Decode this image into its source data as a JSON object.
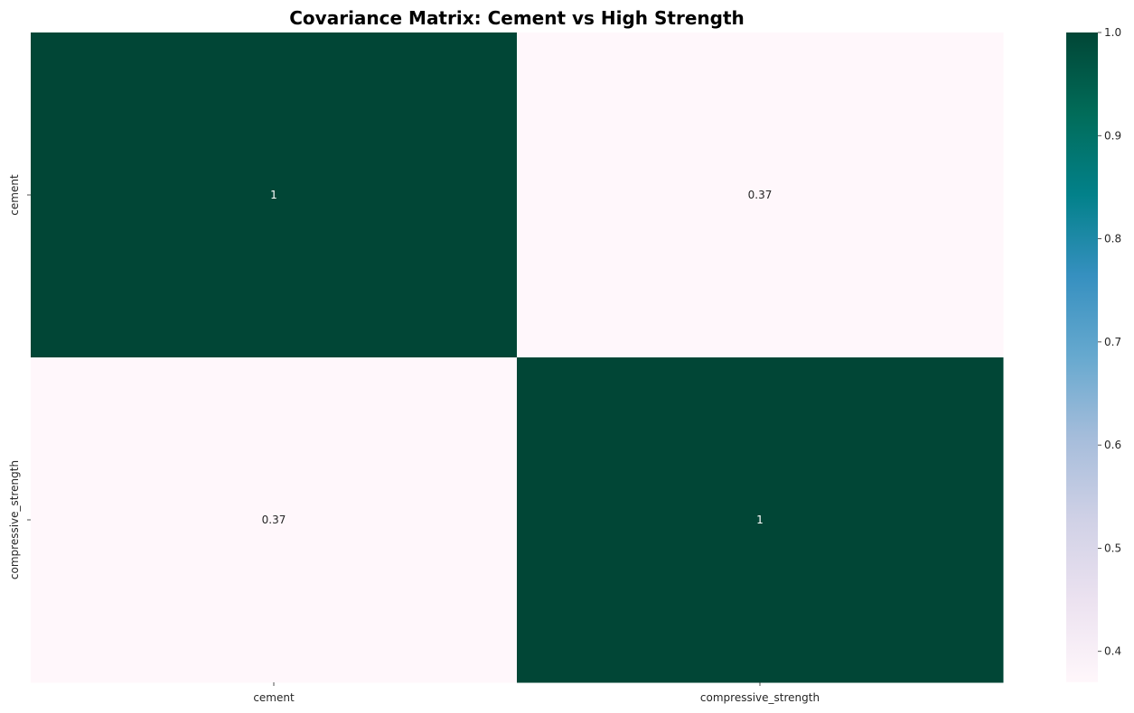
{
  "chart_data": {
    "type": "heatmap",
    "title": "Covariance Matrix: Cement vs High Strength",
    "x_labels": [
      "cement",
      "compressive_strength"
    ],
    "y_labels": [
      "cement",
      "compressive_strength"
    ],
    "values": [
      [
        1,
        0.37
      ],
      [
        0.37,
        1
      ]
    ],
    "annotations": [
      [
        "1",
        "0.37"
      ],
      [
        "0.37",
        "1"
      ]
    ],
    "colormap": "PuBuGn",
    "color_stops": [
      "#fff7fb",
      "#ece2f0",
      "#d0d1e6",
      "#a6bddb",
      "#67a9cf",
      "#3690c0",
      "#02818a",
      "#016c59",
      "#014636"
    ],
    "vmin": 0.37,
    "vmax": 1.0,
    "colorbar_ticks": [
      0.4,
      0.5,
      0.6,
      0.7,
      0.8,
      0.9,
      1.0
    ],
    "colorbar_tick_labels": [
      "0.4",
      "0.5",
      "0.6",
      "0.7",
      "0.8",
      "0.9",
      "1.0"
    ]
  }
}
